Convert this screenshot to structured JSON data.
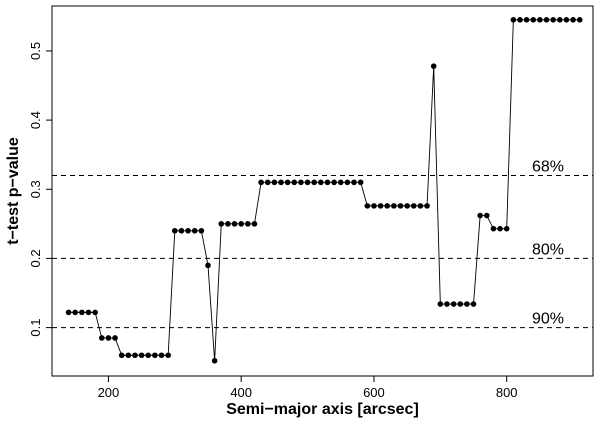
{
  "chart_data": {
    "type": "line",
    "title": "",
    "xlabel": "Semi−major axis [arcsec]",
    "ylabel": "t−test p−value",
    "xlim": [
      115,
      930
    ],
    "ylim": [
      0.03,
      0.565
    ],
    "xticks": [
      200,
      400,
      600,
      800
    ],
    "xtick_labels": [
      "200",
      "400",
      "600",
      "800"
    ],
    "yticks": [
      0.1,
      0.2,
      0.3,
      0.4,
      0.5
    ],
    "ytick_labels": [
      "0.1",
      "0.2",
      "0.3",
      "0.4",
      "0.5"
    ],
    "grid": false,
    "reference_lines": [
      {
        "y": 0.32,
        "label": "68%"
      },
      {
        "y": 0.2,
        "label": "80%"
      },
      {
        "y": 0.1,
        "label": "90%"
      }
    ],
    "series": [
      {
        "name": "p-value",
        "x": [
          140,
          150,
          160,
          170,
          180,
          190,
          200,
          210,
          220,
          230,
          240,
          250,
          260,
          270,
          280,
          290,
          300,
          310,
          320,
          330,
          340,
          350,
          360,
          370,
          380,
          390,
          400,
          410,
          420,
          430,
          440,
          450,
          460,
          470,
          480,
          490,
          500,
          510,
          520,
          530,
          540,
          550,
          560,
          570,
          580,
          590,
          600,
          610,
          620,
          630,
          640,
          650,
          660,
          670,
          680,
          690,
          700,
          710,
          720,
          730,
          740,
          750,
          760,
          770,
          780,
          790,
          800,
          810,
          820,
          830,
          840,
          850,
          860,
          870,
          880,
          890,
          900,
          910
        ],
        "y": [
          0.122,
          0.122,
          0.122,
          0.122,
          0.122,
          0.085,
          0.085,
          0.085,
          0.06,
          0.06,
          0.06,
          0.06,
          0.06,
          0.06,
          0.06,
          0.06,
          0.24,
          0.24,
          0.24,
          0.24,
          0.24,
          0.19,
          0.052,
          0.25,
          0.25,
          0.25,
          0.25,
          0.25,
          0.25,
          0.31,
          0.31,
          0.31,
          0.31,
          0.31,
          0.31,
          0.31,
          0.31,
          0.31,
          0.31,
          0.31,
          0.31,
          0.31,
          0.31,
          0.31,
          0.31,
          0.276,
          0.276,
          0.276,
          0.276,
          0.276,
          0.276,
          0.276,
          0.276,
          0.276,
          0.276,
          0.478,
          0.134,
          0.134,
          0.134,
          0.134,
          0.134,
          0.134,
          0.262,
          0.262,
          0.243,
          0.243,
          0.243,
          0.545,
          0.545,
          0.545,
          0.545,
          0.545,
          0.545,
          0.545,
          0.545,
          0.545,
          0.545,
          0.545
        ]
      }
    ]
  }
}
